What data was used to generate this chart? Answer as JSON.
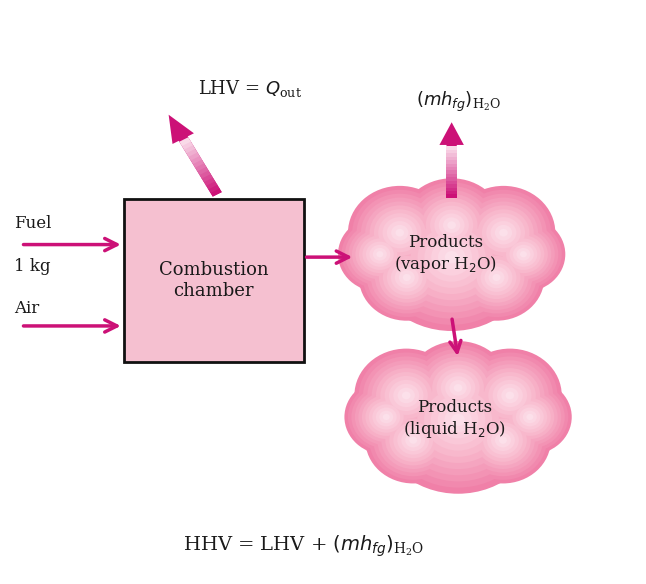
{
  "bg_color": "#ffffff",
  "arrow_color": "#cc1177",
  "box_color": "#f5c0d0",
  "box_edge_color": "#111111",
  "cloud_color_outer": "#f080a8",
  "cloud_color_mid": "#f8b8cc",
  "cloud_color_inner": "#fde8f0",
  "text_color_dark": "#1a1a1a",
  "combustion_label": "Combustion\nchamber",
  "products_vapor_label": "Products\n(vapor H$_2$O)",
  "products_liquid_label": "Products\n(liquid H$_2$O)",
  "figsize": [
    6.46,
    5.84
  ],
  "dpi": 100
}
